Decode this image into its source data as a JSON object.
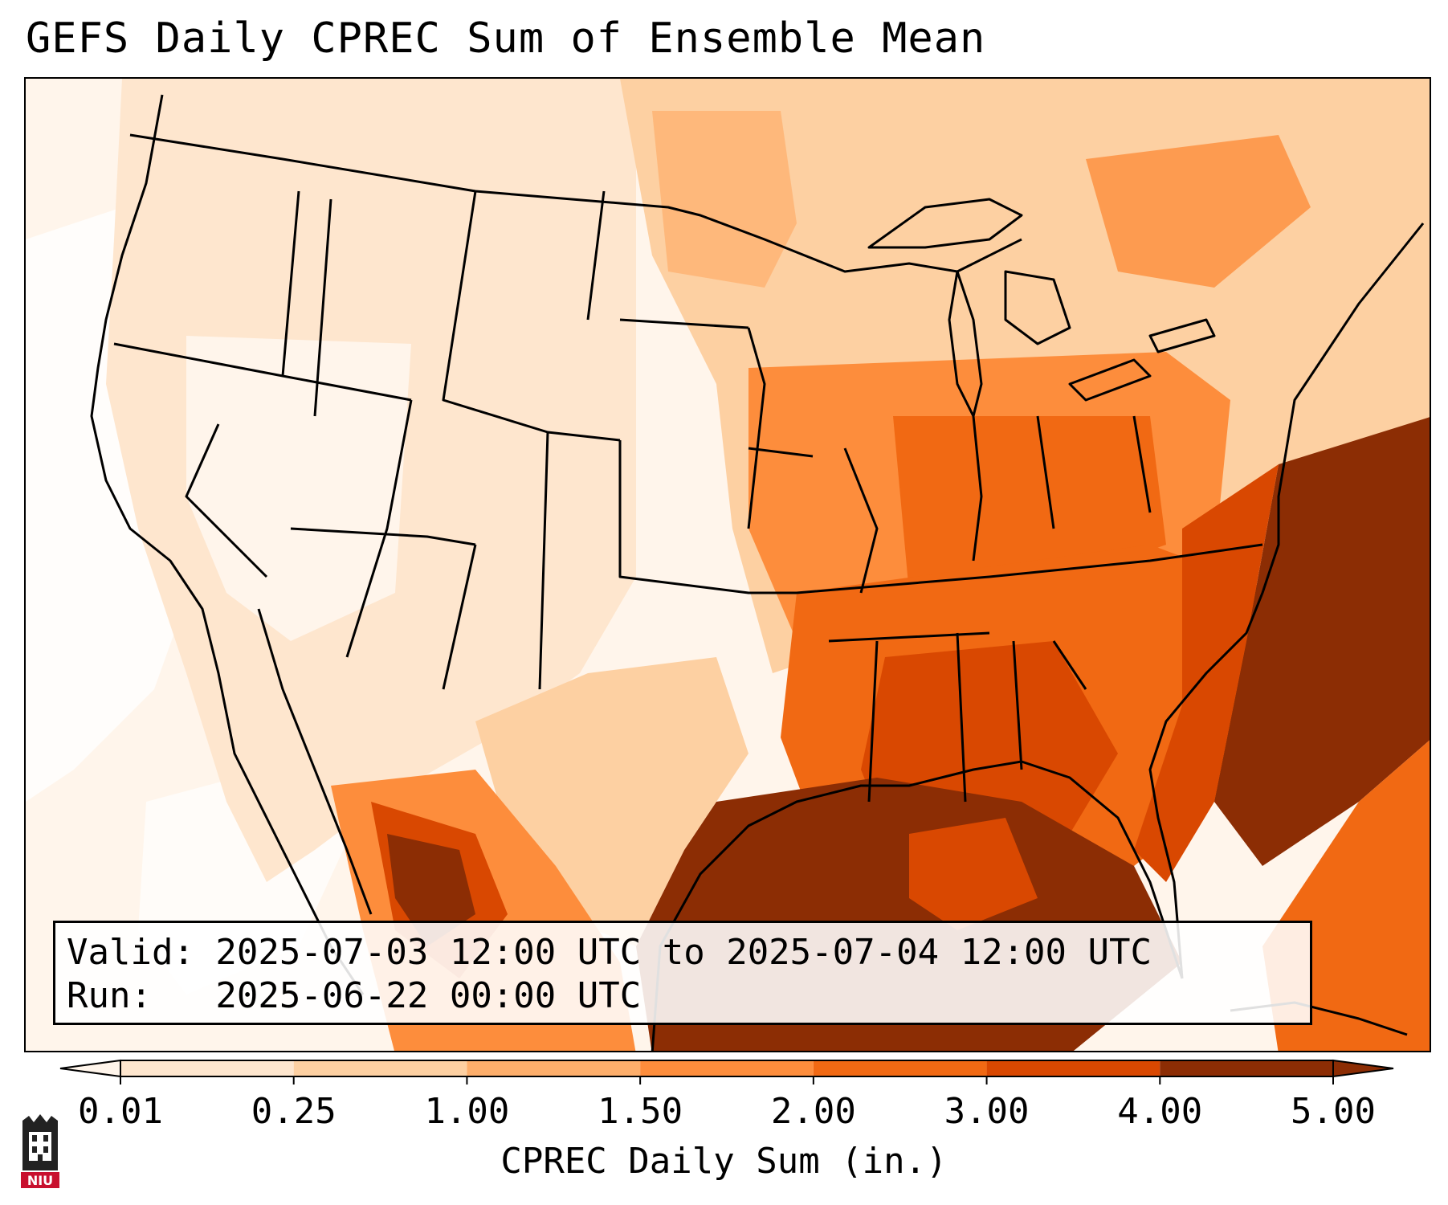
{
  "header": {
    "title": "GEFS Daily CPREC Sum of Ensemble Mean"
  },
  "info": {
    "valid_line": "Valid: 2025-07-03 12:00 UTC to 2025-07-04 12:00 UTC",
    "run_line": "Run:   2025-06-22 00:00 UTC"
  },
  "colorbar": {
    "label": "CPREC Daily Sum (in.)",
    "ticks": [
      "0.01",
      "0.25",
      "1.00",
      "1.50",
      "2.00",
      "3.00",
      "4.00",
      "5.00"
    ],
    "colors": [
      "#fff5eb",
      "#fee6ce",
      "#fdd0a2",
      "#fdae6b",
      "#fd8d3c",
      "#f16913",
      "#d94801",
      "#8c2d04"
    ],
    "extend": "both"
  },
  "logo": {
    "text": "NIU",
    "color": "#c8102e"
  },
  "map": {
    "projection": "Lambert conformal, CONUS",
    "coastline_color": "#000000"
  }
}
